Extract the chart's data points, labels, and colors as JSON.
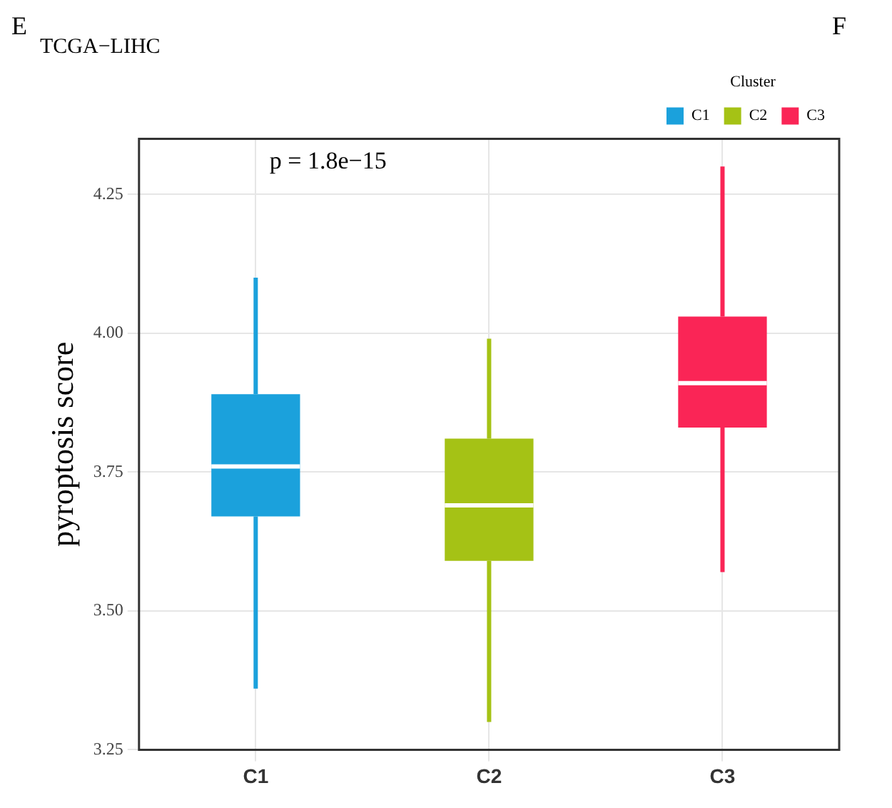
{
  "chart_data": {
    "type": "box",
    "title": "TCGA−LIHC",
    "ylabel": "pyroptosis score",
    "legend_title": "Cluster",
    "legend": "top right",
    "categories": [
      "C1",
      "C2",
      "C3"
    ],
    "series": [
      {
        "name": "C1",
        "color": "#1ba1dc",
        "boxes": [
          {
            "low": 3.36,
            "q1": 3.67,
            "median": 3.76,
            "q3": 3.89,
            "high": 4.1
          },
          null,
          null
        ]
      },
      {
        "name": "C2",
        "color": "#a5c215",
        "boxes": [
          null,
          {
            "low": 3.3,
            "q1": 3.59,
            "median": 3.69,
            "q3": 3.81,
            "high": 3.99
          },
          null
        ]
      },
      {
        "name": "C3",
        "color": "#fa2556",
        "boxes": [
          null,
          null,
          {
            "low": 3.57,
            "q1": 3.83,
            "median": 3.91,
            "q3": 4.03,
            "high": 4.3
          }
        ]
      }
    ],
    "ylim": [
      3.25,
      4.35
    ],
    "yticks": [
      3.25,
      {
        "value": 3.5,
        "label": "3.50"
      },
      3.75,
      {
        "value": 4.0,
        "label": "4.00"
      },
      4.25
    ],
    "grid": true,
    "annotations": [
      "E",
      "F",
      "p = 1.8e−15"
    ]
  }
}
